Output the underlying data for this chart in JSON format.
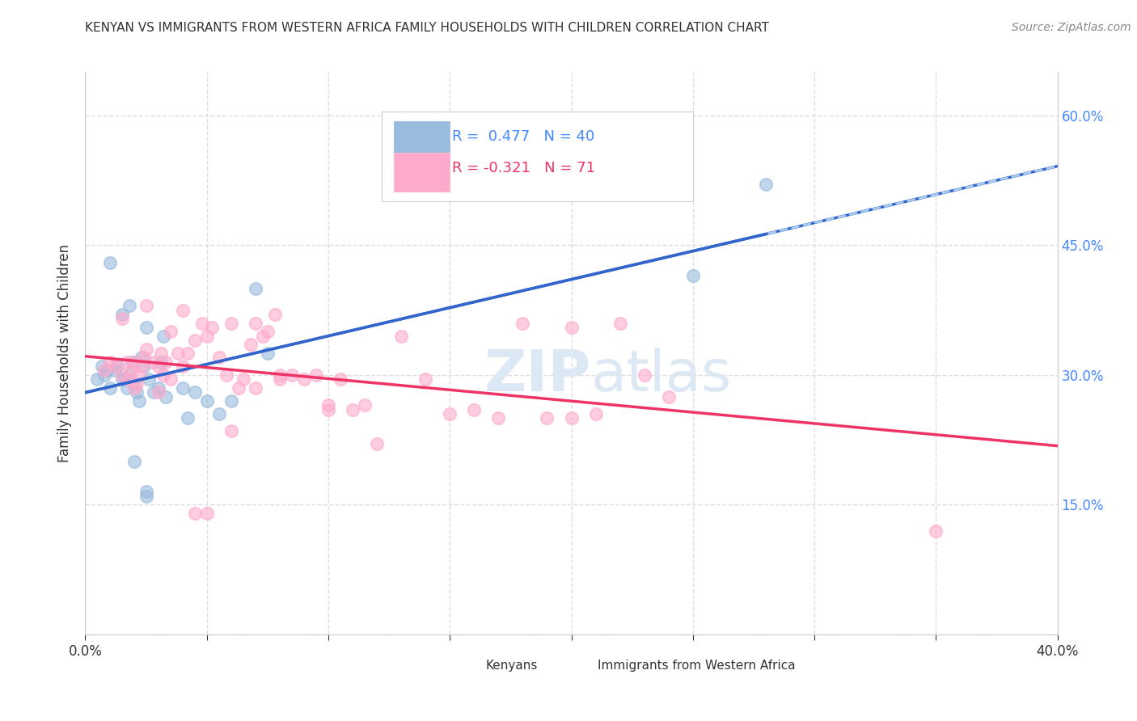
{
  "title": "KENYAN VS IMMIGRANTS FROM WESTERN AFRICA FAMILY HOUSEHOLDS WITH CHILDREN CORRELATION CHART",
  "source": "Source: ZipAtlas.com",
  "ylabel": "Family Households with Children",
  "xlim": [
    0.0,
    0.4
  ],
  "ylim": [
    0.0,
    0.65
  ],
  "ytick_positions": [
    0.0,
    0.15,
    0.3,
    0.45,
    0.6
  ],
  "xtick_positions": [
    0.0,
    0.05,
    0.1,
    0.15,
    0.2,
    0.25,
    0.3,
    0.35,
    0.4
  ],
  "right_ytick_positions": [
    0.15,
    0.3,
    0.45,
    0.6
  ],
  "right_ytick_labels": [
    "15.0%",
    "30.0%",
    "45.0%",
    "60.0%"
  ],
  "blue_scatter_color": "#99bbdd",
  "pink_scatter_color": "#ffaacc",
  "line_blue": "#3366cc",
  "line_pink": "#ee3366",
  "line_dash_color": "#aaccee",
  "background": "#ffffff",
  "grid_color": "#dddddd",
  "grid_style": "--",
  "text_color": "#333333",
  "right_tick_color": "#4488ff",
  "watermark_color": "#ddeeff",
  "kenyan_x": [
    0.005,
    0.007,
    0.008,
    0.009,
    0.01,
    0.012,
    0.013,
    0.015,
    0.016,
    0.017,
    0.018,
    0.019,
    0.02,
    0.021,
    0.022,
    0.023,
    0.024,
    0.025,
    0.026,
    0.028,
    0.03,
    0.031,
    0.032,
    0.033,
    0.04,
    0.042,
    0.045,
    0.05,
    0.055,
    0.06,
    0.07,
    0.075,
    0.01,
    0.015,
    0.018,
    0.02,
    0.025,
    0.25,
    0.28,
    0.025
  ],
  "kenyan_y": [
    0.295,
    0.31,
    0.3,
    0.305,
    0.285,
    0.305,
    0.31,
    0.295,
    0.295,
    0.285,
    0.3,
    0.315,
    0.29,
    0.28,
    0.27,
    0.32,
    0.31,
    0.355,
    0.295,
    0.28,
    0.285,
    0.315,
    0.345,
    0.275,
    0.285,
    0.25,
    0.28,
    0.27,
    0.255,
    0.27,
    0.4,
    0.325,
    0.43,
    0.37,
    0.38,
    0.2,
    0.165,
    0.415,
    0.52,
    0.16
  ],
  "westafrica_x": [
    0.008,
    0.01,
    0.012,
    0.015,
    0.017,
    0.018,
    0.019,
    0.02,
    0.021,
    0.022,
    0.023,
    0.024,
    0.025,
    0.028,
    0.03,
    0.031,
    0.032,
    0.033,
    0.035,
    0.038,
    0.04,
    0.042,
    0.045,
    0.048,
    0.05,
    0.052,
    0.055,
    0.058,
    0.06,
    0.063,
    0.065,
    0.068,
    0.07,
    0.073,
    0.075,
    0.078,
    0.08,
    0.085,
    0.09,
    0.095,
    0.1,
    0.105,
    0.11,
    0.115,
    0.12,
    0.13,
    0.14,
    0.15,
    0.16,
    0.17,
    0.18,
    0.19,
    0.2,
    0.21,
    0.22,
    0.23,
    0.24,
    0.015,
    0.02,
    0.025,
    0.03,
    0.035,
    0.04,
    0.045,
    0.05,
    0.06,
    0.07,
    0.08,
    0.1,
    0.2,
    0.35
  ],
  "westafrica_y": [
    0.305,
    0.315,
    0.31,
    0.3,
    0.315,
    0.295,
    0.305,
    0.315,
    0.29,
    0.3,
    0.31,
    0.32,
    0.33,
    0.315,
    0.31,
    0.325,
    0.3,
    0.315,
    0.35,
    0.325,
    0.31,
    0.325,
    0.34,
    0.36,
    0.345,
    0.355,
    0.32,
    0.3,
    0.36,
    0.285,
    0.295,
    0.335,
    0.36,
    0.345,
    0.35,
    0.37,
    0.3,
    0.3,
    0.295,
    0.3,
    0.265,
    0.295,
    0.26,
    0.265,
    0.22,
    0.345,
    0.295,
    0.255,
    0.26,
    0.25,
    0.36,
    0.25,
    0.355,
    0.255,
    0.36,
    0.3,
    0.275,
    0.365,
    0.285,
    0.38,
    0.28,
    0.295,
    0.375,
    0.14,
    0.14,
    0.235,
    0.285,
    0.295,
    0.26,
    0.25,
    0.12
  ]
}
